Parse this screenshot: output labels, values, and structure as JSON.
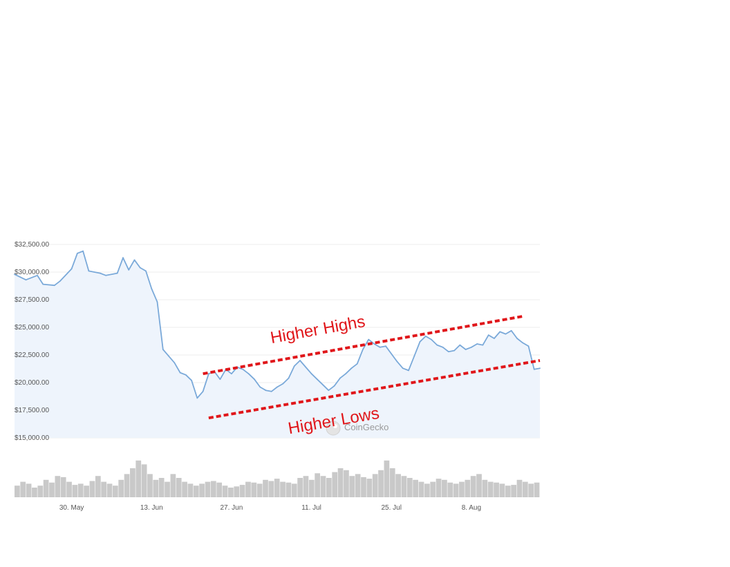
{
  "chart_data": {
    "type": "line",
    "source": "CoinGecko",
    "y_axis": {
      "ylim": [
        15000,
        32500
      ],
      "tick_values": [
        15000,
        17500,
        20000,
        22500,
        25000,
        27500,
        30000,
        32500
      ],
      "tick_labels": [
        "$15,000.00",
        "$17,500.00",
        "$20,000.00",
        "$22,500.00",
        "$25,000.00",
        "$27,500.00",
        "$30,000.00",
        "$32,500.00"
      ]
    },
    "x_axis": {
      "range": [
        "2022-05-20",
        "2022-08-20"
      ],
      "tick_dates": [
        "2022-05-30",
        "2022-06-13",
        "2022-06-27",
        "2022-07-11",
        "2022-07-25",
        "2022-08-08"
      ],
      "tick_labels": [
        "30. May",
        "13. Jun",
        "27. Jun",
        "11. Jul",
        "25. Jul",
        "8. Aug"
      ]
    },
    "grid": true,
    "series": [
      {
        "color": "#7aa9d9",
        "fill": "#eef4fc",
        "points": [
          [
            "2022-05-20",
            29800
          ],
          [
            "2022-05-22",
            29300
          ],
          [
            "2022-05-24",
            29700
          ],
          [
            "2022-05-25",
            28900
          ],
          [
            "2022-05-27",
            28800
          ],
          [
            "2022-05-28",
            29200
          ],
          [
            "2022-05-30",
            30300
          ],
          [
            "2022-05-31",
            31700
          ],
          [
            "2022-06-01",
            31900
          ],
          [
            "2022-06-02",
            30100
          ],
          [
            "2022-06-04",
            29900
          ],
          [
            "2022-06-05",
            29700
          ],
          [
            "2022-06-07",
            29900
          ],
          [
            "2022-06-08",
            31300
          ],
          [
            "2022-06-09",
            30200
          ],
          [
            "2022-06-10",
            31100
          ],
          [
            "2022-06-11",
            30400
          ],
          [
            "2022-06-12",
            30100
          ],
          [
            "2022-06-13",
            28500
          ],
          [
            "2022-06-14",
            27300
          ],
          [
            "2022-06-15",
            23000
          ],
          [
            "2022-06-16",
            22400
          ],
          [
            "2022-06-17",
            21800
          ],
          [
            "2022-06-18",
            20900
          ],
          [
            "2022-06-19",
            20700
          ],
          [
            "2022-06-20",
            20200
          ],
          [
            "2022-06-21",
            18600
          ],
          [
            "2022-06-22",
            19200
          ],
          [
            "2022-06-23",
            20800
          ],
          [
            "2022-06-24",
            21000
          ],
          [
            "2022-06-25",
            20300
          ],
          [
            "2022-06-26",
            21200
          ],
          [
            "2022-06-27",
            20800
          ],
          [
            "2022-06-28",
            21400
          ],
          [
            "2022-06-29",
            21200
          ],
          [
            "2022-06-30",
            20800
          ],
          [
            "2022-07-01",
            20300
          ],
          [
            "2022-07-02",
            19600
          ],
          [
            "2022-07-03",
            19300
          ],
          [
            "2022-07-04",
            19200
          ],
          [
            "2022-07-05",
            19600
          ],
          [
            "2022-07-06",
            19900
          ],
          [
            "2022-07-07",
            20400
          ],
          [
            "2022-07-08",
            21500
          ],
          [
            "2022-07-09",
            22000
          ],
          [
            "2022-07-10",
            21400
          ],
          [
            "2022-07-11",
            20800
          ],
          [
            "2022-07-12",
            20300
          ],
          [
            "2022-07-13",
            19800
          ],
          [
            "2022-07-14",
            19300
          ],
          [
            "2022-07-15",
            19700
          ],
          [
            "2022-07-16",
            20400
          ],
          [
            "2022-07-17",
            20800
          ],
          [
            "2022-07-18",
            21300
          ],
          [
            "2022-07-19",
            21700
          ],
          [
            "2022-07-20",
            23000
          ],
          [
            "2022-07-21",
            23900
          ],
          [
            "2022-07-22",
            23500
          ],
          [
            "2022-07-23",
            23200
          ],
          [
            "2022-07-24",
            23300
          ],
          [
            "2022-07-25",
            22600
          ],
          [
            "2022-07-26",
            21900
          ],
          [
            "2022-07-27",
            21300
          ],
          [
            "2022-07-28",
            21100
          ],
          [
            "2022-07-29",
            22400
          ],
          [
            "2022-07-30",
            23700
          ],
          [
            "2022-07-31",
            24200
          ],
          [
            "2022-08-01",
            23900
          ],
          [
            "2022-08-02",
            23400
          ],
          [
            "2022-08-03",
            23200
          ],
          [
            "2022-08-04",
            22800
          ],
          [
            "2022-08-05",
            22900
          ],
          [
            "2022-08-06",
            23400
          ],
          [
            "2022-08-07",
            23000
          ],
          [
            "2022-08-08",
            23200
          ],
          [
            "2022-08-09",
            23500
          ],
          [
            "2022-08-10",
            23400
          ],
          [
            "2022-08-11",
            24300
          ],
          [
            "2022-08-12",
            24000
          ],
          [
            "2022-08-13",
            24600
          ],
          [
            "2022-08-14",
            24400
          ],
          [
            "2022-08-15",
            24700
          ],
          [
            "2022-08-16",
            24000
          ],
          [
            "2022-08-17",
            23600
          ],
          [
            "2022-08-18",
            23300
          ],
          [
            "2022-08-19",
            21200
          ],
          [
            "2022-08-20",
            21300
          ]
        ]
      }
    ],
    "volume": {
      "color": "#c9c9c9",
      "relative_levels": [
        0.3,
        0.4,
        0.35,
        0.25,
        0.3,
        0.45,
        0.38,
        0.55,
        0.52,
        0.4,
        0.32,
        0.35,
        0.3,
        0.42,
        0.55,
        0.4,
        0.35,
        0.3,
        0.45,
        0.6,
        0.75,
        0.95,
        0.85,
        0.6,
        0.45,
        0.5,
        0.4,
        0.6,
        0.5,
        0.4,
        0.35,
        0.3,
        0.35,
        0.4,
        0.42,
        0.38,
        0.3,
        0.25,
        0.28,
        0.32,
        0.4,
        0.38,
        0.35,
        0.45,
        0.42,
        0.48,
        0.4,
        0.38,
        0.35,
        0.5,
        0.55,
        0.45,
        0.62,
        0.55,
        0.5,
        0.65,
        0.75,
        0.7,
        0.55,
        0.6,
        0.52,
        0.48,
        0.6,
        0.7,
        0.95,
        0.75,
        0.6,
        0.55,
        0.5,
        0.45,
        0.4,
        0.35,
        0.4,
        0.48,
        0.45,
        0.38,
        0.35,
        0.4,
        0.45,
        0.55,
        0.6,
        0.45,
        0.4,
        0.38,
        0.35,
        0.3,
        0.32,
        0.45,
        0.4,
        0.35,
        0.38
      ]
    },
    "annotations": [
      {
        "text": "Higher Highs",
        "color": "#e0161a",
        "trendline": [
          [
            "2022-06-22",
            20800
          ],
          [
            "2022-08-17",
            26000
          ]
        ]
      },
      {
        "text": "Higher Lows",
        "color": "#e0161a",
        "trendline": [
          [
            "2022-06-23",
            16800
          ],
          [
            "2022-08-20",
            22000
          ]
        ]
      }
    ]
  }
}
